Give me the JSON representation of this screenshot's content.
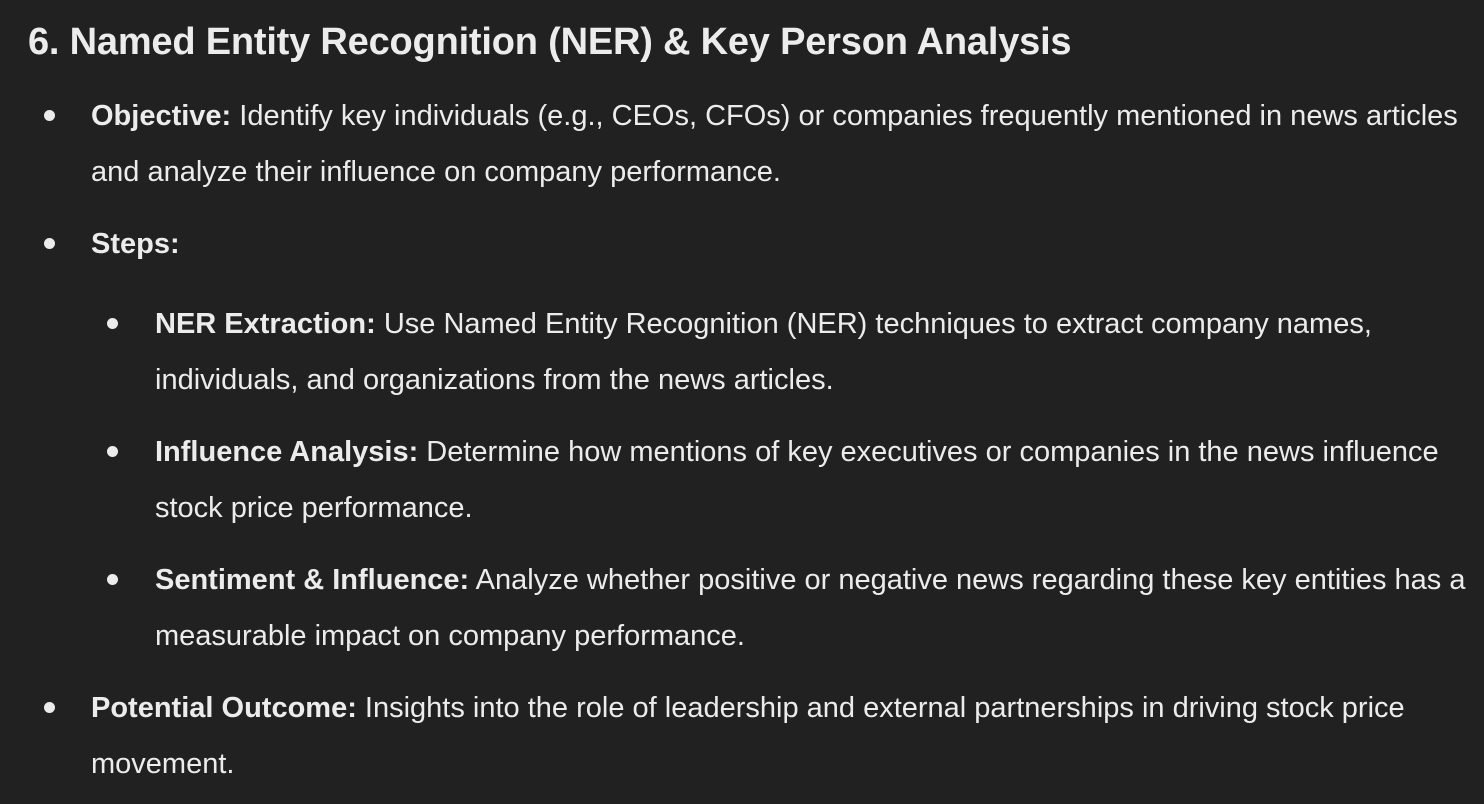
{
  "heading": "6. Named Entity Recognition (NER) & Key Person Analysis",
  "objective": {
    "label": "Objective:",
    "text": " Identify key individuals (e.g., CEOs, CFOs) or companies frequently mentioned in news articles and analyze their influence on company performance."
  },
  "steps": {
    "label": "Steps:",
    "items": [
      {
        "label": "NER Extraction:",
        "text": " Use Named Entity Recognition (NER) techniques to extract company names, individuals, and organizations from the news articles."
      },
      {
        "label": "Influence Analysis:",
        "text": " Determine how mentions of key executives or companies in the news influence stock price performance."
      },
      {
        "label": "Sentiment & Influence:",
        "text": " Analyze whether positive or negative news regarding these key entities has a measurable impact on company performance."
      }
    ]
  },
  "outcome": {
    "label": "Potential Outcome:",
    "text": " Insights into the role of leadership and external partnerships in driving stock price movement."
  }
}
